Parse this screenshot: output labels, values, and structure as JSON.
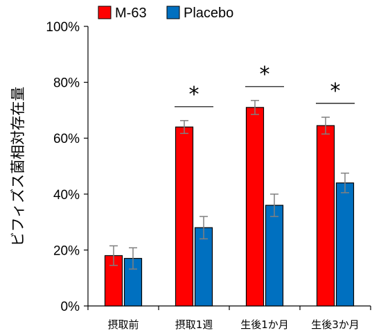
{
  "chart_data": {
    "type": "bar",
    "categories": [
      "摂取前",
      "摂取1週",
      "生後1か月",
      "生後3か月"
    ],
    "series": [
      {
        "name": "M-63",
        "color": "#ff0000",
        "values": [
          18,
          64,
          71,
          64.5
        ],
        "errors": [
          3.5,
          2.3,
          2.5,
          3.0
        ]
      },
      {
        "name": "Placebo",
        "color": "#0070c0",
        "values": [
          17,
          28,
          36,
          44
        ],
        "errors": [
          3.8,
          4.0,
          4.0,
          3.5
        ]
      }
    ],
    "ylabel": "ビフィズス菌相対存在量",
    "yticks": [
      "0%",
      "20%",
      "40%",
      "60%",
      "80%",
      "100%"
    ],
    "ylim": [
      0,
      100
    ],
    "significance": [
      {
        "category_index": 1,
        "symbol": "*"
      },
      {
        "category_index": 2,
        "symbol": "*"
      },
      {
        "category_index": 3,
        "symbol": "*"
      }
    ],
    "legend_position": "top"
  }
}
